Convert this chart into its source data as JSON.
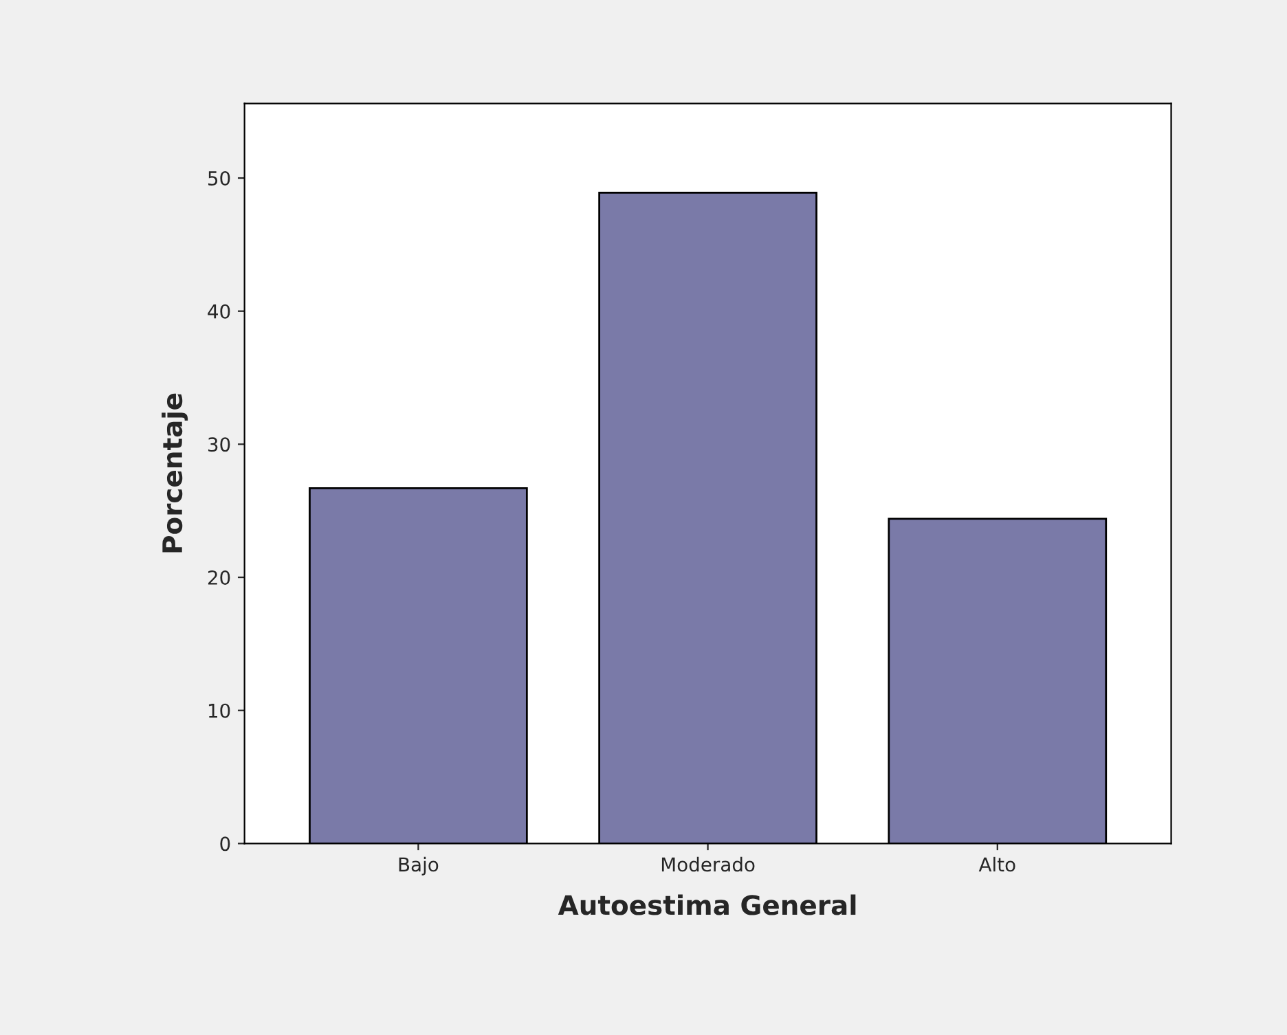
{
  "chart_data": {
    "type": "bar",
    "xlabel": "Autoestima General",
    "ylabel": "Porcentaje",
    "categories": [
      "Bajo",
      "Moderado",
      "Alto"
    ],
    "values": [
      26.7,
      48.9,
      24.4
    ],
    "color": "#7a7aa8",
    "ylim": [
      0,
      55.6
    ],
    "yticks": [
      0,
      10,
      20,
      30,
      40,
      50
    ],
    "grid": false
  }
}
